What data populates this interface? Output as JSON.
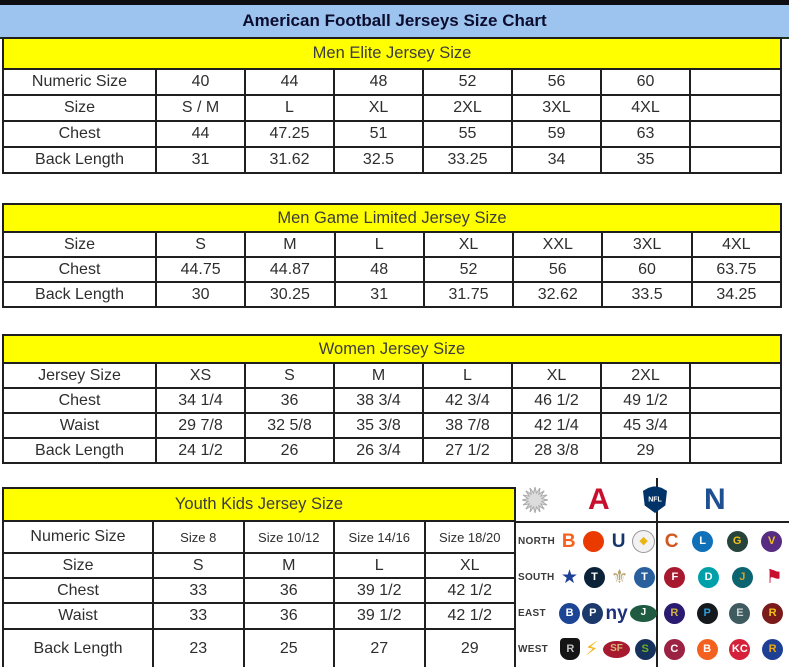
{
  "title": "American Football Jerseys Size Chart",
  "tables": [
    {
      "id": "men-elite",
      "header": "Men Elite Jersey Size",
      "rows": [
        {
          "label": "Numeric Size",
          "values": [
            "40",
            "44",
            "48",
            "52",
            "56",
            "60",
            ""
          ]
        },
        {
          "label": "Size",
          "values": [
            "S / M",
            "L",
            "XL",
            "2XL",
            "3XL",
            "4XL",
            ""
          ]
        },
        {
          "label": "Chest",
          "values": [
            "44",
            "47.25",
            "51",
            "55",
            "59",
            "63",
            ""
          ]
        },
        {
          "label": "Back Length",
          "values": [
            "31",
            "31.62",
            "32.5",
            "33.25",
            "34",
            "35",
            ""
          ]
        }
      ]
    },
    {
      "id": "men-game-limited",
      "header": "Men Game Limited Jersey Size",
      "rows": [
        {
          "label": "Size",
          "values": [
            "S",
            "M",
            "L",
            "XL",
            "XXL",
            "3XL",
            "4XL"
          ]
        },
        {
          "label": "Chest",
          "values": [
            "44.75",
            "44.87",
            "48",
            "52",
            "56",
            "60",
            "63.75"
          ]
        },
        {
          "label": "Back Length",
          "values": [
            "30",
            "30.25",
            "31",
            "31.75",
            "32.62",
            "33.5",
            "34.25"
          ]
        }
      ]
    },
    {
      "id": "women",
      "header": "Women Jersey Size",
      "rows": [
        {
          "label": "Jersey Size",
          "values": [
            "XS",
            "S",
            "M",
            "L",
            "XL",
            "2XL",
            ""
          ]
        },
        {
          "label": "Chest",
          "values": [
            "34 1/4",
            "36",
            "38 3/4",
            "42 3/4",
            "46 1/2",
            "49 1/2",
            ""
          ]
        },
        {
          "label": "Waist",
          "values": [
            "29 7/8",
            "32 5/8",
            "35 3/8",
            "38 7/8",
            "42 1/4",
            "45 3/4",
            ""
          ]
        },
        {
          "label": "Back Length",
          "values": [
            "24 1/2",
            "26",
            "26 3/4",
            "27 1/2",
            "28 3/8",
            "29",
            ""
          ]
        }
      ]
    },
    {
      "id": "youth-kids",
      "header": "Youth Kids Jersey Size",
      "rows": [
        {
          "label": "Numeric Size",
          "values": [
            "Size 8",
            "Size 10/12",
            "Size 14/16",
            "Size 18/20"
          ]
        },
        {
          "label": "Size",
          "values": [
            "S",
            "M",
            "L",
            "XL"
          ]
        },
        {
          "label": "Chest",
          "values": [
            "33",
            "36",
            "39 1/2",
            "42 1/2"
          ]
        },
        {
          "label": "Waist",
          "values": [
            "33",
            "36",
            "39 1/2",
            "42 1/2"
          ]
        },
        {
          "label": "Back Length",
          "values": [
            "23",
            "25",
            "27",
            "29"
          ]
        }
      ]
    }
  ],
  "colors": {
    "title_bg": "#9cc4ee",
    "section_header_bg": "#ffff00",
    "border": "#1f1f1f",
    "afc_red": "#c8102e",
    "nfc_blue": "#1d4f91",
    "nfl_navy": "#013369"
  },
  "logo_panel": {
    "header": [
      {
        "name": "starburst",
        "style": "star-svg"
      },
      {
        "name": "afc-conference",
        "style": "conf-letter",
        "glyph": "A",
        "fg": "#c8102e"
      },
      {
        "name": "nfl-shield",
        "style": "shield",
        "glyph": "NFL",
        "fg": "#ffffff",
        "bg": "#013369"
      },
      {
        "name": "nfc-conference",
        "style": "conf-letter",
        "glyph": "N",
        "fg": "#1d4f91"
      }
    ],
    "rows": [
      {
        "division": "NORTH",
        "afc": [
          {
            "name": "bengals",
            "style": "letter",
            "glyph": "B",
            "fg": "#f4611e"
          },
          {
            "name": "browns",
            "style": "badge",
            "glyph": "",
            "fg": "#ffffff",
            "bg": "#eb3a00"
          },
          {
            "name": "colts",
            "style": "letter",
            "glyph": "U",
            "fg": "#15366b"
          },
          {
            "name": "steelers",
            "style": "badge",
            "glyph": "◆",
            "fg": "#e9b611",
            "bg": "#f2f2f2",
            "border": "#999999"
          }
        ],
        "nfc": [
          {
            "name": "bears",
            "style": "letter",
            "glyph": "C",
            "fg": "#d2571e"
          },
          {
            "name": "lions",
            "style": "badge",
            "glyph": "L",
            "fg": "#ffffff",
            "bg": "#1071b8"
          },
          {
            "name": "packers",
            "style": "badge",
            "glyph": "G",
            "fg": "#f3c21a",
            "bg": "#26443b"
          },
          {
            "name": "vikings",
            "style": "badge",
            "glyph": "V",
            "fg": "#f3c21a",
            "bg": "#582c83"
          }
        ]
      },
      {
        "division": "SOUTH",
        "afc": [
          {
            "name": "cowboys",
            "style": "letter",
            "glyph": "★",
            "fg": "#1d3f94"
          },
          {
            "name": "texans",
            "style": "badge",
            "glyph": "T",
            "fg": "#ffffff",
            "bg": "#0b2239"
          },
          {
            "name": "saints",
            "style": "letter",
            "glyph": "⚜",
            "fg": "#b5a269"
          },
          {
            "name": "titans",
            "style": "badge",
            "glyph": "T",
            "fg": "#ffffff",
            "bg": "#2a5f9e"
          }
        ],
        "nfc": [
          {
            "name": "falcons",
            "style": "badge",
            "glyph": "F",
            "fg": "#ffffff",
            "bg": "#a6192e"
          },
          {
            "name": "dolphins",
            "style": "badge",
            "glyph": "D",
            "fg": "#ffffff",
            "bg": "#00a0ab"
          },
          {
            "name": "jaguars",
            "style": "badge",
            "glyph": "J",
            "fg": "#d7a22a",
            "bg": "#0c6470"
          },
          {
            "name": "buccaneers",
            "style": "letter",
            "glyph": "⚑",
            "fg": "#c8102e"
          }
        ]
      },
      {
        "division": "EAST",
        "afc": [
          {
            "name": "bills",
            "style": "badge",
            "glyph": "B",
            "fg": "#ffffff",
            "bg": "#1c4596"
          },
          {
            "name": "patriots",
            "style": "badge",
            "glyph": "P",
            "fg": "#ffffff",
            "bg": "#1b3a6b"
          },
          {
            "name": "giants",
            "style": "letter",
            "glyph": "ny",
            "fg": "#1d2f7c"
          },
          {
            "name": "jets",
            "style": "oval",
            "glyph": "J",
            "fg": "#ffffff",
            "bg": "#1e5b40"
          }
        ],
        "nfc": [
          {
            "name": "ravens",
            "style": "badge",
            "glyph": "R",
            "fg": "#d0b240",
            "bg": "#2a1a70"
          },
          {
            "name": "panthers",
            "style": "badge",
            "glyph": "P",
            "fg": "#2f9bd6",
            "bg": "#151a1e"
          },
          {
            "name": "eagles",
            "style": "badge",
            "glyph": "E",
            "fg": "#cdd3d4",
            "bg": "#3e5c5f"
          },
          {
            "name": "redskins",
            "style": "badge",
            "glyph": "R",
            "fg": "#f2c31a",
            "bg": "#7a1b1b"
          }
        ]
      },
      {
        "division": "WEST",
        "afc": [
          {
            "name": "raiders",
            "style": "shieldb",
            "glyph": "R",
            "fg": "#c0c0c0",
            "bg": "#141414"
          },
          {
            "name": "chargers",
            "style": "letter",
            "glyph": "⚡",
            "fg": "#f2b31a"
          },
          {
            "name": "niners",
            "style": "oval",
            "glyph": "SF",
            "fg": "#d9b877",
            "bg": "#a6192e"
          },
          {
            "name": "seahawks",
            "style": "badge",
            "glyph": "S",
            "fg": "#6ab023",
            "bg": "#16325c"
          }
        ],
        "nfc": [
          {
            "name": "cardinals",
            "style": "badge",
            "glyph": "C",
            "fg": "#ffffff",
            "bg": "#9b2242"
          },
          {
            "name": "broncos",
            "style": "badge",
            "glyph": "B",
            "fg": "#ffffff",
            "bg": "#f4611e"
          },
          {
            "name": "chiefs",
            "style": "badge",
            "glyph": "KC",
            "fg": "#ffffff",
            "bg": "#d5203a"
          },
          {
            "name": "rams",
            "style": "badge",
            "glyph": "R",
            "fg": "#f2a90a",
            "bg": "#1d3f94"
          }
        ]
      }
    ]
  }
}
